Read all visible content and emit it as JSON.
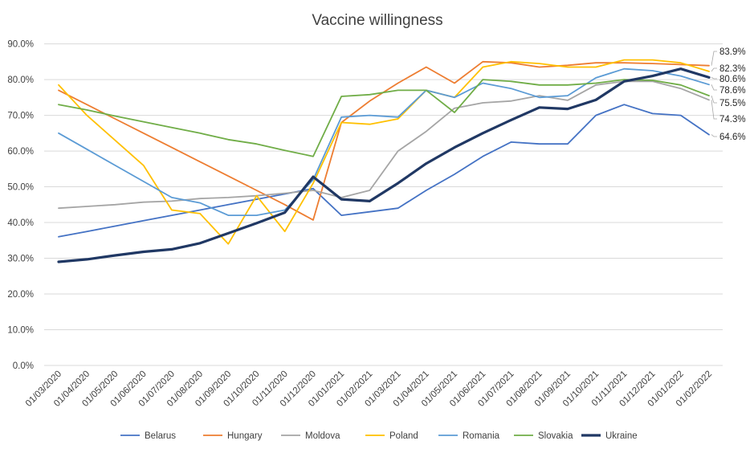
{
  "chart_data": {
    "type": "line",
    "title": "Vaccine willingness",
    "xlabel": "",
    "ylabel": "",
    "ylim": [
      0,
      90
    ],
    "yticks": [
      "0.0%",
      "10.0%",
      "20.0%",
      "30.0%",
      "40.0%",
      "50.0%",
      "60.0%",
      "70.0%",
      "80.0%",
      "90.0%"
    ],
    "grid": true,
    "legend_position": "bottom",
    "categories": [
      "01/03/2020",
      "01/04/2020",
      "01/05/2020",
      "01/06/2020",
      "01/07/2020",
      "01/08/2020",
      "01/09/2020",
      "01/10/2020",
      "01/11/2020",
      "01/12/2020",
      "01/01/2021",
      "01/02/2021",
      "01/03/2021",
      "01/04/2021",
      "01/05/2021",
      "01/06/2021",
      "01/07/2021",
      "01/08/2021",
      "01/09/2021",
      "01/10/2021",
      "01/11/2021",
      "01/12/2021",
      "01/01/2022",
      "01/02/2022"
    ],
    "series": [
      {
        "name": "Belarus",
        "color": "#4472c4",
        "width": 1.8,
        "values": [
          36.0,
          37.5,
          39.0,
          40.5,
          42.0,
          43.5,
          45.0,
          46.5,
          48.0,
          49.5,
          42.0,
          43.0,
          44.0,
          49.0,
          53.5,
          58.5,
          62.5,
          62.0,
          62.0,
          70.0,
          73.0,
          70.5,
          70.0,
          64.6
        ]
      },
      {
        "name": "Hungary",
        "color": "#ed7d31",
        "width": 1.8,
        "values": [
          77.0,
          73.0,
          69.0,
          65.0,
          61.0,
          57.0,
          53.0,
          49.0,
          45.0,
          40.7,
          68.0,
          74.0,
          79.0,
          83.5,
          79.0,
          85.0,
          84.7,
          83.5,
          84.0,
          84.7,
          84.7,
          84.5,
          84.2,
          83.9
        ]
      },
      {
        "name": "Moldova",
        "color": "#a5a5a5",
        "width": 1.8,
        "values": [
          44.0,
          44.5,
          45.0,
          45.7,
          46.0,
          46.7,
          47.0,
          47.5,
          48.2,
          49.0,
          47.0,
          49.0,
          60.0,
          65.5,
          72.0,
          73.5,
          74.0,
          75.5,
          74.2,
          78.5,
          79.5,
          79.5,
          77.5,
          74.3
        ]
      },
      {
        "name": "Poland",
        "color": "#ffc000",
        "width": 1.8,
        "values": [
          78.5,
          70.0,
          63.0,
          56.0,
          43.5,
          42.5,
          34.0,
          47.5,
          37.5,
          51.0,
          68.0,
          67.5,
          69.0,
          77.0,
          75.0,
          83.5,
          85.0,
          84.5,
          83.5,
          83.5,
          85.5,
          85.5,
          84.7,
          82.3
        ]
      },
      {
        "name": "Romania",
        "color": "#5b9bd5",
        "width": 1.8,
        "values": [
          65.0,
          60.5,
          56.0,
          51.5,
          47.0,
          45.5,
          42.0,
          42.0,
          43.5,
          52.0,
          69.5,
          70.0,
          69.5,
          77.0,
          75.0,
          79.0,
          77.5,
          75.0,
          75.5,
          80.5,
          83.0,
          82.5,
          81.0,
          78.6
        ]
      },
      {
        "name": "Slovakia",
        "color": "#70ad47",
        "width": 1.8,
        "values": [
          73.0,
          71.5,
          69.8,
          68.2,
          66.6,
          65.0,
          63.2,
          62.0,
          60.2,
          58.5,
          75.3,
          75.8,
          77.0,
          77.0,
          70.8,
          80.0,
          79.5,
          78.5,
          78.5,
          79.0,
          80.0,
          79.8,
          78.5,
          75.5
        ]
      },
      {
        "name": "Ukraine",
        "color": "#203864",
        "width": 3.2,
        "values": [
          29.0,
          29.7,
          30.8,
          31.8,
          32.5,
          34.2,
          37.0,
          39.8,
          42.8,
          52.8,
          46.5,
          46.0,
          51.0,
          56.5,
          61.0,
          65.0,
          68.7,
          72.2,
          71.8,
          74.3,
          79.5,
          81.0,
          83.0,
          80.6
        ]
      }
    ],
    "end_labels": [
      "83.9%",
      "82.3%",
      "80.6%",
      "78.6%",
      "75.5%",
      "74.3%",
      "64.6%"
    ]
  }
}
